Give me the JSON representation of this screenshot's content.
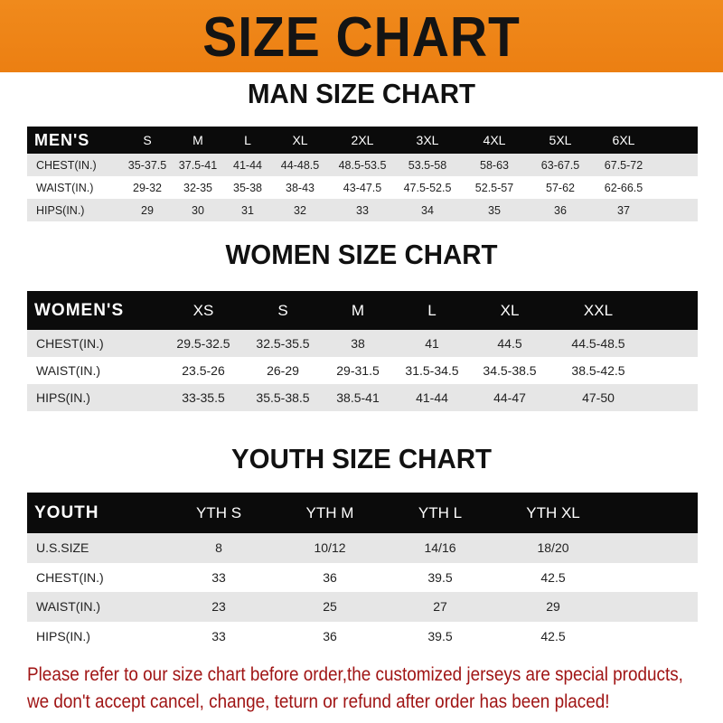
{
  "banner": {
    "title": "SIZE CHART",
    "color": "#ee8416"
  },
  "tables": [
    {
      "id": "men",
      "title": "MAN SIZE CHART",
      "header_label": "MEN'S",
      "sizes": [
        "S",
        "M",
        "L",
        "XL",
        "2XL",
        "3XL",
        "4XL",
        "5XL",
        "6XL"
      ],
      "rows": [
        {
          "label": "CHEST(IN.)",
          "values": [
            "35-37.5",
            "37.5-41",
            "41-44",
            "44-48.5",
            "48.5-53.5",
            "53.5-58",
            "58-63",
            "63-67.5",
            "67.5-72"
          ]
        },
        {
          "label": "WAIST(IN.)",
          "values": [
            "29-32",
            "32-35",
            "35-38",
            "38-43",
            "43-47.5",
            "47.5-52.5",
            "52.5-57",
            "57-62",
            "62-66.5"
          ]
        },
        {
          "label": "HIPS(IN.)",
          "values": [
            "29",
            "30",
            "31",
            "32",
            "33",
            "34",
            "35",
            "36",
            "37"
          ]
        }
      ]
    },
    {
      "id": "women",
      "title": "WOMEN SIZE CHART",
      "header_label": "WOMEN'S",
      "sizes": [
        "XS",
        "S",
        "M",
        "L",
        "XL",
        "XXL"
      ],
      "rows": [
        {
          "label": "CHEST(IN.)",
          "values": [
            "29.5-32.5",
            "32.5-35.5",
            "38",
            "41",
            "44.5",
            "44.5-48.5"
          ]
        },
        {
          "label": "WAIST(IN.)",
          "values": [
            "23.5-26",
            "26-29",
            "29-31.5",
            "31.5-34.5",
            "34.5-38.5",
            "38.5-42.5"
          ]
        },
        {
          "label": "HIPS(IN.)",
          "values": [
            "33-35.5",
            "35.5-38.5",
            "38.5-41",
            "41-44",
            "44-47",
            "47-50"
          ]
        }
      ]
    },
    {
      "id": "youth",
      "title": "YOUTH SIZE CHART",
      "header_label": "YOUTH",
      "sizes": [
        "YTH S",
        "YTH M",
        "YTH L",
        "YTH XL"
      ],
      "rows": [
        {
          "label": "U.S.SIZE",
          "values": [
            "8",
            "10/12",
            "14/16",
            "18/20"
          ]
        },
        {
          "label": "CHEST(IN.)",
          "values": [
            "33",
            "36",
            "39.5",
            "42.5"
          ]
        },
        {
          "label": "WAIST(IN.)",
          "values": [
            "23",
            "25",
            "27",
            "29"
          ]
        },
        {
          "label": "HIPS(IN.)",
          "values": [
            "33",
            "36",
            "39.5",
            "42.5"
          ]
        }
      ]
    }
  ],
  "notice": {
    "line1": "Please refer to our size chart before order,the customized jerseys are special products,",
    "line2": "we don't accept cancel, change, teturn or refund after order has been placed!",
    "color": "#a01515"
  }
}
